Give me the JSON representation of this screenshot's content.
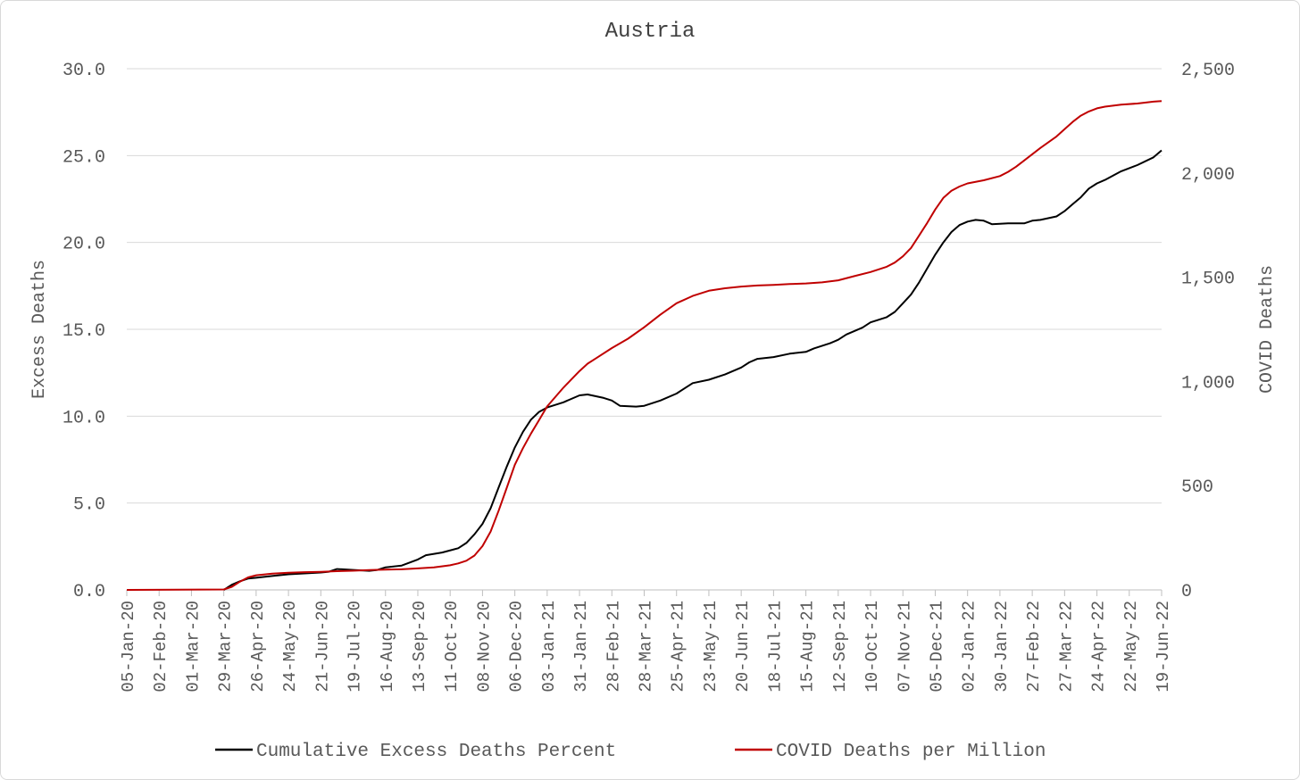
{
  "chart_data": {
    "type": "line",
    "title": "Austria",
    "ylabel": "Excess Deaths",
    "y2label": "COVID Deaths",
    "ylim": [
      0,
      30
    ],
    "y2lim": [
      0,
      2500
    ],
    "yticks": [
      "0.0",
      "5.0",
      "10.0",
      "15.0",
      "20.0",
      "25.0",
      "30.0"
    ],
    "y2ticks": [
      "0",
      "500",
      "1,000",
      "1,500",
      "2,000",
      "2,500"
    ],
    "grid": true,
    "legend": "bottom",
    "x_start": "05-Jan-20",
    "x_end": "19-Jun-22",
    "x_ticks": [
      "05-Jan-20",
      "02-Feb-20",
      "01-Mar-20",
      "29-Mar-20",
      "26-Apr-20",
      "24-May-20",
      "21-Jun-20",
      "19-Jul-20",
      "16-Aug-20",
      "13-Sep-20",
      "11-Oct-20",
      "08-Nov-20",
      "06-Dec-20",
      "03-Jan-21",
      "31-Jan-21",
      "28-Feb-21",
      "28-Mar-21",
      "25-Apr-21",
      "23-May-21",
      "20-Jun-21",
      "18-Jul-21",
      "15-Aug-21",
      "12-Sep-21",
      "10-Oct-21",
      "07-Nov-21",
      "05-Dec-21",
      "02-Jan-22",
      "30-Jan-22",
      "27-Feb-22",
      "27-Mar-22",
      "24-Apr-22",
      "22-May-22",
      "19-Jun-22"
    ],
    "series": [
      {
        "name": "Cumulative Excess Deaths Percent",
        "color": "#000000",
        "axis": "left",
        "points": [
          [
            "29-Mar-20",
            0.0
          ],
          [
            "05-Apr-20",
            0.3
          ],
          [
            "12-Apr-20",
            0.5
          ],
          [
            "19-Apr-20",
            0.65
          ],
          [
            "26-Apr-20",
            0.7
          ],
          [
            "10-May-20",
            0.8
          ],
          [
            "24-May-20",
            0.9
          ],
          [
            "07-Jun-20",
            0.95
          ],
          [
            "21-Jun-20",
            1.0
          ],
          [
            "28-Jun-20",
            1.05
          ],
          [
            "05-Jul-20",
            1.2
          ],
          [
            "19-Jul-20",
            1.15
          ],
          [
            "02-Aug-20",
            1.1
          ],
          [
            "09-Aug-20",
            1.15
          ],
          [
            "16-Aug-20",
            1.3
          ],
          [
            "30-Aug-20",
            1.4
          ],
          [
            "13-Sep-20",
            1.75
          ],
          [
            "20-Sep-20",
            2.0
          ],
          [
            "04-Oct-20",
            2.15
          ],
          [
            "18-Oct-20",
            2.4
          ],
          [
            "25-Oct-20",
            2.7
          ],
          [
            "01-Nov-20",
            3.2
          ],
          [
            "08-Nov-20",
            3.8
          ],
          [
            "15-Nov-20",
            4.7
          ],
          [
            "22-Nov-20",
            5.9
          ],
          [
            "29-Nov-20",
            7.1
          ],
          [
            "06-Dec-20",
            8.2
          ],
          [
            "13-Dec-20",
            9.1
          ],
          [
            "20-Dec-20",
            9.8
          ],
          [
            "27-Dec-20",
            10.25
          ],
          [
            "03-Jan-21",
            10.5
          ],
          [
            "17-Jan-21",
            10.8
          ],
          [
            "31-Jan-21",
            11.2
          ],
          [
            "07-Feb-21",
            11.25
          ],
          [
            "21-Feb-21",
            11.05
          ],
          [
            "28-Feb-21",
            10.9
          ],
          [
            "07-Mar-21",
            10.6
          ],
          [
            "21-Mar-21",
            10.55
          ],
          [
            "28-Mar-21",
            10.6
          ],
          [
            "11-Apr-21",
            10.9
          ],
          [
            "25-Apr-21",
            11.3
          ],
          [
            "09-May-21",
            11.9
          ],
          [
            "23-May-21",
            12.1
          ],
          [
            "06-Jun-21",
            12.4
          ],
          [
            "20-Jun-21",
            12.8
          ],
          [
            "27-Jun-21",
            13.1
          ],
          [
            "04-Jul-21",
            13.3
          ],
          [
            "18-Jul-21",
            13.4
          ],
          [
            "01-Aug-21",
            13.6
          ],
          [
            "15-Aug-21",
            13.7
          ],
          [
            "22-Aug-21",
            13.9
          ],
          [
            "05-Sep-21",
            14.2
          ],
          [
            "12-Sep-21",
            14.4
          ],
          [
            "19-Sep-21",
            14.7
          ],
          [
            "03-Oct-21",
            15.1
          ],
          [
            "10-Oct-21",
            15.4
          ],
          [
            "24-Oct-21",
            15.7
          ],
          [
            "31-Oct-21",
            16.0
          ],
          [
            "07-Nov-21",
            16.5
          ],
          [
            "14-Nov-21",
            17.0
          ],
          [
            "21-Nov-21",
            17.7
          ],
          [
            "28-Nov-21",
            18.5
          ],
          [
            "05-Dec-21",
            19.3
          ],
          [
            "12-Dec-21",
            20.0
          ],
          [
            "19-Dec-21",
            20.6
          ],
          [
            "26-Dec-21",
            21.0
          ],
          [
            "02-Jan-22",
            21.2
          ],
          [
            "09-Jan-22",
            21.3
          ],
          [
            "16-Jan-22",
            21.25
          ],
          [
            "23-Jan-22",
            21.05
          ],
          [
            "06-Feb-22",
            21.1
          ],
          [
            "20-Feb-22",
            21.1
          ],
          [
            "27-Feb-22",
            21.25
          ],
          [
            "06-Mar-22",
            21.3
          ],
          [
            "20-Mar-22",
            21.5
          ],
          [
            "27-Mar-22",
            21.8
          ],
          [
            "03-Apr-22",
            22.2
          ],
          [
            "10-Apr-22",
            22.6
          ],
          [
            "17-Apr-22",
            23.1
          ],
          [
            "24-Apr-22",
            23.4
          ],
          [
            "01-May-22",
            23.6
          ],
          [
            "15-May-22",
            24.1
          ],
          [
            "29-May-22",
            24.45
          ],
          [
            "12-Jun-22",
            24.9
          ],
          [
            "19-Jun-22",
            25.3
          ]
        ]
      },
      {
        "name": "COVID Deaths per Million",
        "color": "#c00000",
        "axis": "right",
        "points": [
          [
            "05-Jan-20",
            0
          ],
          [
            "29-Mar-20",
            2
          ],
          [
            "05-Apr-20",
            15
          ],
          [
            "12-Apr-20",
            40
          ],
          [
            "19-Apr-20",
            60
          ],
          [
            "26-Apr-20",
            70
          ],
          [
            "10-May-20",
            78
          ],
          [
            "24-May-20",
            82
          ],
          [
            "07-Jun-20",
            85
          ],
          [
            "21-Jun-20",
            87
          ],
          [
            "05-Jul-20",
            90
          ],
          [
            "19-Jul-20",
            92
          ],
          [
            "02-Aug-20",
            95
          ],
          [
            "16-Aug-20",
            97
          ],
          [
            "30-Aug-20",
            99
          ],
          [
            "13-Sep-20",
            103
          ],
          [
            "27-Sep-20",
            108
          ],
          [
            "11-Oct-20",
            118
          ],
          [
            "18-Oct-20",
            127
          ],
          [
            "25-Oct-20",
            140
          ],
          [
            "01-Nov-20",
            165
          ],
          [
            "08-Nov-20",
            210
          ],
          [
            "15-Nov-20",
            280
          ],
          [
            "22-Nov-20",
            380
          ],
          [
            "29-Nov-20",
            490
          ],
          [
            "06-Dec-20",
            600
          ],
          [
            "13-Dec-20",
            680
          ],
          [
            "20-Dec-20",
            750
          ],
          [
            "27-Dec-20",
            815
          ],
          [
            "03-Jan-21",
            880
          ],
          [
            "10-Jan-21",
            925
          ],
          [
            "17-Jan-21",
            970
          ],
          [
            "24-Jan-21",
            1010
          ],
          [
            "31-Jan-21",
            1050
          ],
          [
            "07-Feb-21",
            1085
          ],
          [
            "14-Feb-21",
            1110
          ],
          [
            "28-Feb-21",
            1160
          ],
          [
            "14-Mar-21",
            1205
          ],
          [
            "28-Mar-21",
            1260
          ],
          [
            "11-Apr-21",
            1320
          ],
          [
            "25-Apr-21",
            1375
          ],
          [
            "09-May-21",
            1410
          ],
          [
            "23-May-21",
            1435
          ],
          [
            "06-Jun-21",
            1447
          ],
          [
            "20-Jun-21",
            1455
          ],
          [
            "04-Jul-21",
            1460
          ],
          [
            "18-Jul-21",
            1463
          ],
          [
            "01-Aug-21",
            1467
          ],
          [
            "15-Aug-21",
            1470
          ],
          [
            "29-Aug-21",
            1475
          ],
          [
            "12-Sep-21",
            1485
          ],
          [
            "26-Sep-21",
            1505
          ],
          [
            "10-Oct-21",
            1525
          ],
          [
            "24-Oct-21",
            1550
          ],
          [
            "31-Oct-21",
            1570
          ],
          [
            "07-Nov-21",
            1600
          ],
          [
            "14-Nov-21",
            1640
          ],
          [
            "21-Nov-21",
            1700
          ],
          [
            "28-Nov-21",
            1760
          ],
          [
            "05-Dec-21",
            1825
          ],
          [
            "12-Dec-21",
            1880
          ],
          [
            "19-Dec-21",
            1915
          ],
          [
            "26-Dec-21",
            1935
          ],
          [
            "02-Jan-22",
            1950
          ],
          [
            "16-Jan-22",
            1965
          ],
          [
            "30-Jan-22",
            1985
          ],
          [
            "06-Feb-22",
            2005
          ],
          [
            "13-Feb-22",
            2030
          ],
          [
            "20-Feb-22",
            2060
          ],
          [
            "06-Mar-22",
            2120
          ],
          [
            "20-Mar-22",
            2175
          ],
          [
            "27-Mar-22",
            2210
          ],
          [
            "03-Apr-22",
            2245
          ],
          [
            "10-Apr-22",
            2275
          ],
          [
            "17-Apr-22",
            2295
          ],
          [
            "24-Apr-22",
            2310
          ],
          [
            "01-May-22",
            2318
          ],
          [
            "15-May-22",
            2328
          ],
          [
            "29-May-22",
            2333
          ],
          [
            "12-Jun-22",
            2342
          ],
          [
            "19-Jun-22",
            2345
          ]
        ]
      }
    ]
  }
}
